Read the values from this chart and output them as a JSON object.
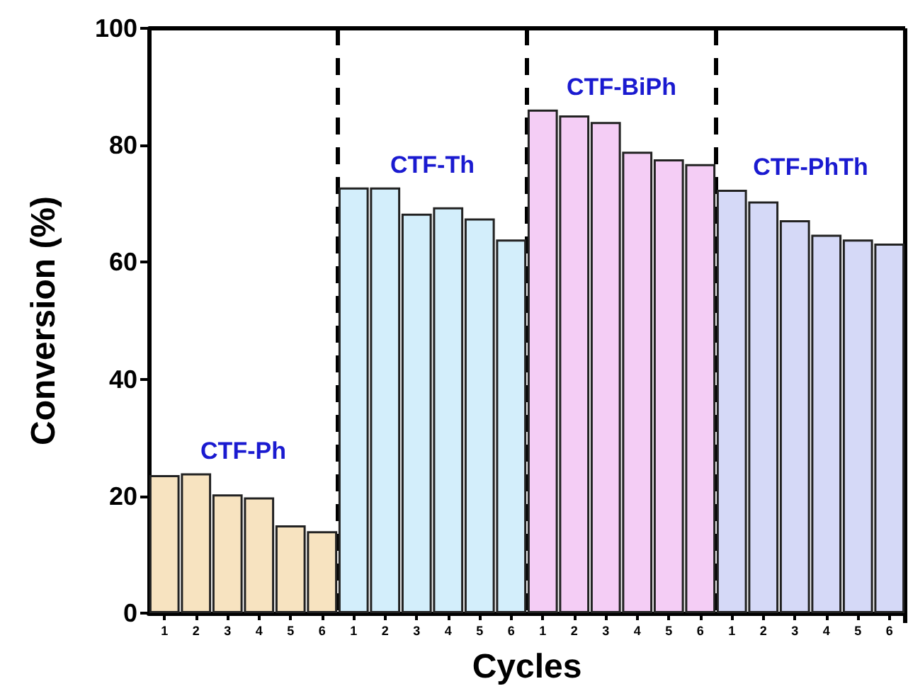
{
  "chart_data": {
    "type": "bar",
    "xlabel": "Cycles",
    "ylabel": "Conversion (%)",
    "categories": [
      "1",
      "2",
      "3",
      "4",
      "5",
      "6",
      "1",
      "2",
      "3",
      "4",
      "5",
      "6",
      "1",
      "2",
      "3",
      "4",
      "5",
      "6",
      "1",
      "2",
      "3",
      "4",
      "5",
      "6"
    ],
    "series": [
      {
        "name": "CTF-Ph",
        "color": "#f7e3c0",
        "values": [
          23.6,
          23.9,
          20.3,
          19.8,
          15.0,
          14.0,
          null,
          null,
          null,
          null,
          null,
          null,
          null,
          null,
          null,
          null,
          null,
          null,
          null,
          null,
          null,
          null,
          null,
          null
        ]
      },
      {
        "name": "CTF-Th",
        "color": "#d3eefb",
        "values": [
          null,
          null,
          null,
          null,
          null,
          null,
          72.8,
          72.8,
          68.3,
          69.4,
          67.5,
          63.9,
          null,
          null,
          null,
          null,
          null,
          null,
          null,
          null,
          null,
          null,
          null,
          null
        ]
      },
      {
        "name": "CTF-BiPh",
        "color": "#f4cdf5",
        "values": [
          null,
          null,
          null,
          null,
          null,
          null,
          null,
          null,
          null,
          null,
          null,
          null,
          86.1,
          85.1,
          84.0,
          78.9,
          77.6,
          76.8,
          null,
          null,
          null,
          null,
          null,
          null
        ]
      },
      {
        "name": "CTF-PhTh",
        "color": "#d5d9f7",
        "values": [
          null,
          null,
          null,
          null,
          null,
          null,
          null,
          null,
          null,
          null,
          null,
          null,
          null,
          null,
          null,
          null,
          null,
          null,
          72.4,
          70.4,
          67.2,
          64.7,
          63.9,
          63.2
        ]
      }
    ],
    "ylim": [
      0,
      100
    ],
    "yticks": [
      0,
      20,
      40,
      60,
      80,
      100
    ],
    "grid": false,
    "legend": false
  }
}
